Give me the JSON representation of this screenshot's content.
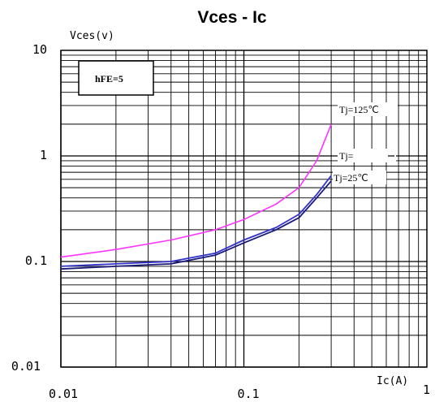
{
  "chart_data": {
    "type": "line",
    "title": "Vces - Ic",
    "ylabel": "Vces(v)",
    "xlabel": "Ic(A)",
    "x_scale": "log",
    "y_scale": "log",
    "xlim": [
      0.01,
      1
    ],
    "ylim": [
      0.01,
      10
    ],
    "x_ticks": [
      "0.01",
      "0.1",
      "1"
    ],
    "y_ticks": [
      "10",
      "1",
      "0.1",
      "0.01"
    ],
    "grid": true,
    "colors": {
      "tj125": "#ff33ff",
      "tj_mid": "#3333cc",
      "tj25": "#1a1a7a"
    },
    "annotations": {
      "hfe": "hFE=5",
      "tj125": "Tj=125℃",
      "tj_mid": "Tj=",
      "tj25": "Tj=25℃"
    },
    "series": [
      {
        "name": "Tj=125℃",
        "x": [
          0.01,
          0.02,
          0.04,
          0.07,
          0.1,
          0.15,
          0.2,
          0.25,
          0.3
        ],
        "y": [
          0.11,
          0.13,
          0.16,
          0.2,
          0.25,
          0.35,
          0.5,
          0.9,
          2.0
        ]
      },
      {
        "name": "Tj=",
        "x": [
          0.01,
          0.02,
          0.04,
          0.07,
          0.1,
          0.15,
          0.2,
          0.25,
          0.3
        ],
        "y": [
          0.09,
          0.095,
          0.1,
          0.12,
          0.16,
          0.21,
          0.28,
          0.43,
          0.65
        ]
      },
      {
        "name": "Tj=25℃",
        "x": [
          0.01,
          0.02,
          0.04,
          0.07,
          0.1,
          0.15,
          0.2,
          0.25,
          0.3
        ],
        "y": [
          0.085,
          0.09,
          0.095,
          0.115,
          0.15,
          0.2,
          0.26,
          0.4,
          0.58
        ]
      }
    ]
  }
}
